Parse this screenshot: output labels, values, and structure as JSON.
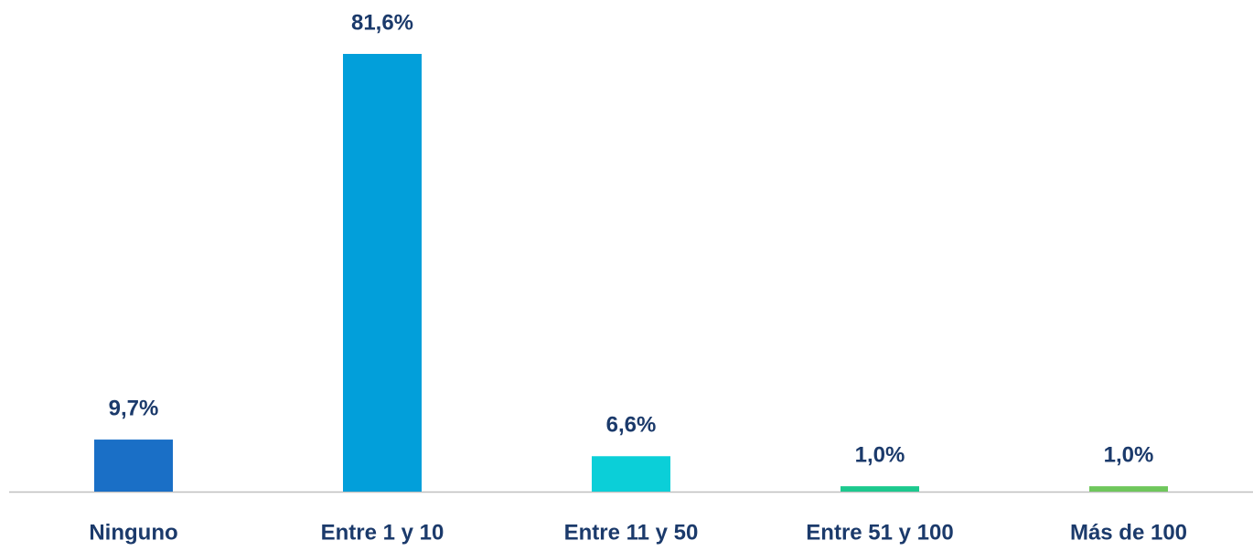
{
  "chart_data": {
    "type": "bar",
    "categories": [
      "Ninguno",
      "Entre 1 y 10",
      "Entre 11 y 50",
      "Entre 51 y 100",
      "Más de 100"
    ],
    "values": [
      9.7,
      81.6,
      6.6,
      1.0,
      1.0
    ],
    "value_labels": [
      "9,7%",
      "81,6%",
      "6,6%",
      "1,0%",
      "1,0%"
    ],
    "colors": [
      "#1a6fc6",
      "#029fda",
      "#0bcfd8",
      "#1cc98e",
      "#6fc75c"
    ]
  }
}
